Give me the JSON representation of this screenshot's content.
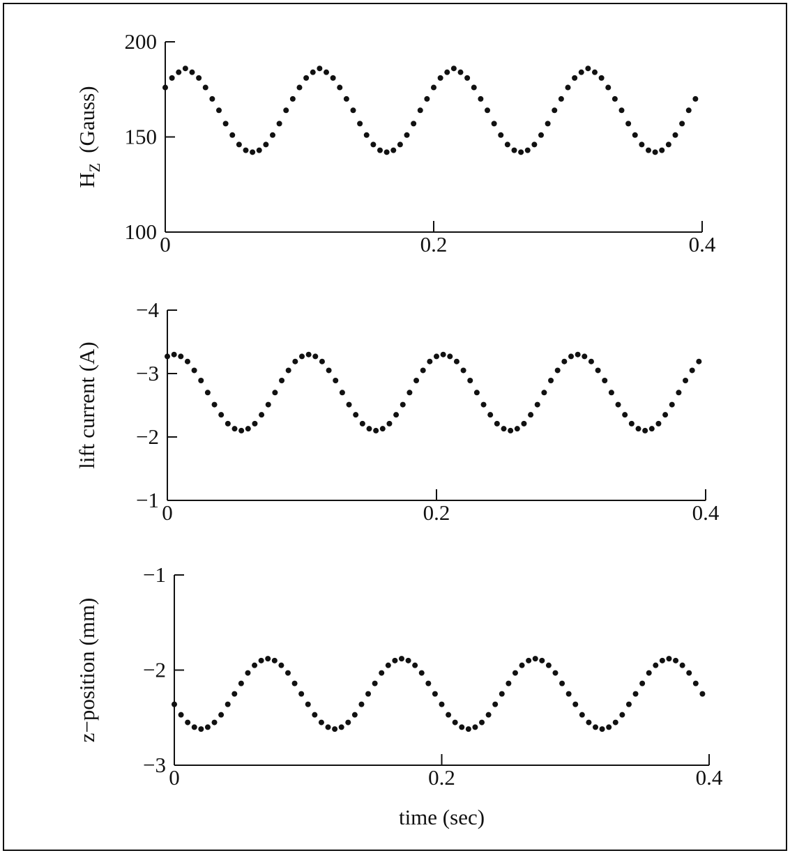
{
  "chart_data": [
    {
      "type": "scatter",
      "ylabel": "H",
      "ylabel_sub": "Z",
      "ylabel_unit": "(Gauss)",
      "color": "#111111",
      "xlim": [
        0,
        0.4
      ],
      "xticks": [
        0,
        0.2,
        0.4
      ],
      "ylim": [
        100,
        200
      ],
      "yticks": [
        100,
        150,
        200
      ],
      "x": [
        0,
        0.005,
        0.01,
        0.015,
        0.02,
        0.025,
        0.03,
        0.035,
        0.04,
        0.045,
        0.05,
        0.055,
        0.06,
        0.065,
        0.07,
        0.075,
        0.08,
        0.085,
        0.09,
        0.095,
        0.1,
        0.105,
        0.11,
        0.115,
        0.12,
        0.125,
        0.13,
        0.135,
        0.14,
        0.145,
        0.15,
        0.155,
        0.16,
        0.165,
        0.17,
        0.175,
        0.18,
        0.185,
        0.19,
        0.195,
        0.2,
        0.205,
        0.21,
        0.215,
        0.22,
        0.225,
        0.23,
        0.235,
        0.24,
        0.245,
        0.25,
        0.255,
        0.26,
        0.265,
        0.27,
        0.275,
        0.28,
        0.285,
        0.29,
        0.295,
        0.3,
        0.305,
        0.31,
        0.315,
        0.32,
        0.325,
        0.33,
        0.335,
        0.34,
        0.345,
        0.35,
        0.355,
        0.36,
        0.365,
        0.37,
        0.375,
        0.38,
        0.385,
        0.39,
        0.395
      ],
      "values": [
        176,
        181,
        184,
        186,
        184,
        181,
        176,
        170,
        164,
        157,
        151,
        146,
        143,
        142,
        143,
        146,
        151,
        157,
        164,
        170,
        176,
        181,
        184,
        186,
        184,
        181,
        176,
        170,
        164,
        157,
        151,
        146,
        143,
        142,
        143,
        146,
        151,
        157,
        164,
        170,
        176,
        181,
        184,
        186,
        184,
        181,
        176,
        170,
        164,
        157,
        151,
        146,
        143,
        142,
        143,
        146,
        151,
        157,
        164,
        170,
        176,
        181,
        184,
        186,
        184,
        181,
        176,
        170,
        164,
        157,
        151,
        146,
        143,
        142,
        143,
        146,
        151,
        157,
        164,
        170
      ]
    },
    {
      "type": "scatter",
      "ylabel": "lift current (A)",
      "color": "#111111",
      "xlim": [
        0,
        0.4
      ],
      "xticks": [
        0,
        0.2,
        0.4
      ],
      "ylim": [
        -1,
        -4
      ],
      "yticks": [
        {
          "value": -1,
          "label": "−1"
        },
        {
          "value": -2,
          "label": "−2"
        },
        {
          "value": -3,
          "label": "−3"
        },
        {
          "value": -4,
          "label": "−4"
        }
      ],
      "x": [
        0,
        0.005,
        0.01,
        0.015,
        0.02,
        0.025,
        0.03,
        0.035,
        0.04,
        0.045,
        0.05,
        0.055,
        0.06,
        0.065,
        0.07,
        0.075,
        0.08,
        0.085,
        0.09,
        0.095,
        0.1,
        0.105,
        0.11,
        0.115,
        0.12,
        0.125,
        0.13,
        0.135,
        0.14,
        0.145,
        0.15,
        0.155,
        0.16,
        0.165,
        0.17,
        0.175,
        0.18,
        0.185,
        0.19,
        0.195,
        0.2,
        0.205,
        0.21,
        0.215,
        0.22,
        0.225,
        0.23,
        0.235,
        0.24,
        0.245,
        0.25,
        0.255,
        0.26,
        0.265,
        0.27,
        0.275,
        0.28,
        0.285,
        0.29,
        0.295,
        0.3,
        0.305,
        0.31,
        0.315,
        0.32,
        0.325,
        0.33,
        0.335,
        0.34,
        0.345,
        0.35,
        0.355,
        0.36,
        0.365,
        0.37,
        0.375,
        0.38,
        0.385,
        0.39,
        0.395
      ],
      "values": [
        -3.27,
        -3.3,
        -3.27,
        -3.19,
        -3.05,
        -2.89,
        -2.7,
        -2.51,
        -2.35,
        -2.21,
        -2.13,
        -2.1,
        -2.13,
        -2.21,
        -2.35,
        -2.51,
        -2.7,
        -2.89,
        -3.05,
        -3.19,
        -3.27,
        -3.3,
        -3.27,
        -3.19,
        -3.05,
        -2.89,
        -2.7,
        -2.51,
        -2.35,
        -2.21,
        -2.13,
        -2.1,
        -2.13,
        -2.21,
        -2.35,
        -2.51,
        -2.7,
        -2.89,
        -3.05,
        -3.19,
        -3.27,
        -3.3,
        -3.27,
        -3.19,
        -3.05,
        -2.89,
        -2.7,
        -2.51,
        -2.35,
        -2.21,
        -2.13,
        -2.1,
        -2.13,
        -2.21,
        -2.35,
        -2.51,
        -2.7,
        -2.89,
        -3.05,
        -3.19,
        -3.27,
        -3.3,
        -3.27,
        -3.19,
        -3.05,
        -2.89,
        -2.7,
        -2.51,
        -2.35,
        -2.21,
        -2.13,
        -2.1,
        -2.13,
        -2.21,
        -2.35,
        -2.51,
        -2.7,
        -2.89,
        -3.05,
        -3.19
      ]
    },
    {
      "type": "scatter",
      "ylabel": "z−position  (mm)",
      "xlabel": "time  (sec)",
      "color": "#111111",
      "xlim": [
        0,
        0.4
      ],
      "xticks": [
        0,
        0.2,
        0.4
      ],
      "ylim": [
        -3,
        -1
      ],
      "yticks": [
        {
          "value": -3,
          "label": "−3"
        },
        {
          "value": -2,
          "label": "−2"
        },
        {
          "value": -1,
          "label": "−1"
        }
      ],
      "x": [
        0,
        0.005,
        0.01,
        0.015,
        0.02,
        0.025,
        0.03,
        0.035,
        0.04,
        0.045,
        0.05,
        0.055,
        0.06,
        0.065,
        0.07,
        0.075,
        0.08,
        0.085,
        0.09,
        0.095,
        0.1,
        0.105,
        0.11,
        0.115,
        0.12,
        0.125,
        0.13,
        0.135,
        0.14,
        0.145,
        0.15,
        0.155,
        0.16,
        0.165,
        0.17,
        0.175,
        0.18,
        0.185,
        0.19,
        0.195,
        0.2,
        0.205,
        0.21,
        0.215,
        0.22,
        0.225,
        0.23,
        0.235,
        0.24,
        0.245,
        0.25,
        0.255,
        0.26,
        0.265,
        0.27,
        0.275,
        0.28,
        0.285,
        0.29,
        0.295,
        0.3,
        0.305,
        0.31,
        0.315,
        0.32,
        0.325,
        0.33,
        0.335,
        0.34,
        0.345,
        0.35,
        0.355,
        0.36,
        0.365,
        0.37,
        0.375,
        0.38,
        0.385,
        0.39,
        0.395
      ],
      "values": [
        -2.36,
        -2.47,
        -2.55,
        -2.6,
        -2.62,
        -2.6,
        -2.55,
        -2.47,
        -2.36,
        -2.25,
        -2.14,
        -2.03,
        -1.95,
        -1.9,
        -1.88,
        -1.9,
        -1.95,
        -2.03,
        -2.14,
        -2.25,
        -2.36,
        -2.47,
        -2.55,
        -2.6,
        -2.62,
        -2.6,
        -2.55,
        -2.47,
        -2.36,
        -2.25,
        -2.14,
        -2.03,
        -1.95,
        -1.9,
        -1.88,
        -1.9,
        -1.95,
        -2.03,
        -2.14,
        -2.25,
        -2.36,
        -2.47,
        -2.55,
        -2.6,
        -2.62,
        -2.6,
        -2.55,
        -2.47,
        -2.36,
        -2.25,
        -2.14,
        -2.03,
        -1.95,
        -1.9,
        -1.88,
        -1.9,
        -1.95,
        -2.03,
        -2.14,
        -2.25,
        -2.36,
        -2.47,
        -2.55,
        -2.6,
        -2.62,
        -2.6,
        -2.55,
        -2.47,
        -2.36,
        -2.25,
        -2.14,
        -2.03,
        -1.95,
        -1.9,
        -1.88,
        -1.9,
        -1.95,
        -2.03,
        -2.14,
        -2.25
      ]
    }
  ]
}
